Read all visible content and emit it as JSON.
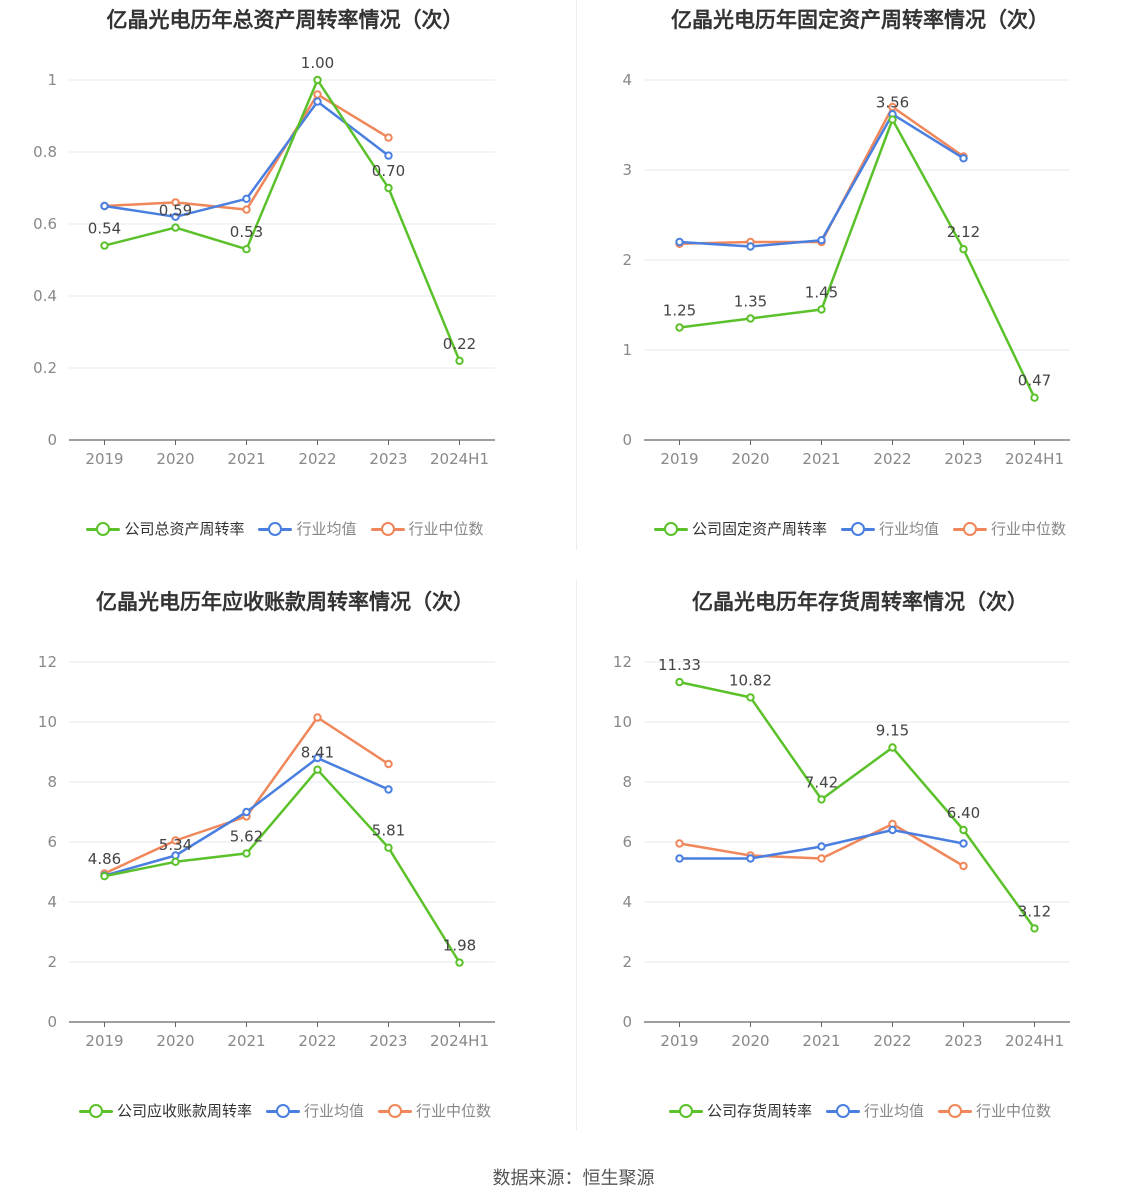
{
  "colors": {
    "company": "#5bc12a",
    "avg": "#4a7fe0",
    "median": "#f0875a",
    "grid": "#e6e8ef",
    "axis": "#666666",
    "tick": "#888888",
    "label": "#444444"
  },
  "source": "数据来源：恒生聚源",
  "chart_data": [
    {
      "type": "line",
      "title": "亿晶光电历年总资产周转率情况（次）",
      "categories": [
        "2019",
        "2020",
        "2021",
        "2022",
        "2023",
        "2024H1"
      ],
      "ylim": [
        0,
        1
      ],
      "yticks": [
        0,
        0.2,
        0.4,
        0.6,
        0.8,
        1
      ],
      "ytick_labels": [
        "0",
        "0.2",
        "0.4",
        "0.6",
        "0.8",
        "1"
      ],
      "grid": true,
      "legend": "bottom-center",
      "series": [
        {
          "name": "公司总资产周转率",
          "key": "company",
          "values": [
            0.54,
            0.59,
            0.53,
            1.0,
            0.7,
            0.22
          ],
          "labels": [
            "0.54",
            "0.59",
            "0.53",
            "1.00",
            "0.70",
            "0.22"
          ]
        },
        {
          "name": "行业均值",
          "key": "avg",
          "values": [
            0.65,
            0.62,
            0.67,
            0.94,
            0.79,
            null
          ]
        },
        {
          "name": "行业中位数",
          "key": "median",
          "values": [
            0.65,
            0.66,
            0.64,
            0.96,
            0.84,
            null
          ]
        }
      ]
    },
    {
      "type": "line",
      "title": "亿晶光电历年固定资产周转率情况（次）",
      "categories": [
        "2019",
        "2020",
        "2021",
        "2022",
        "2023",
        "2024H1"
      ],
      "ylim": [
        0,
        4
      ],
      "yticks": [
        0,
        1,
        2,
        3,
        4
      ],
      "ytick_labels": [
        "0",
        "1",
        "2",
        "3",
        "4"
      ],
      "grid": true,
      "legend": "bottom-center",
      "series": [
        {
          "name": "公司固定资产周转率",
          "key": "company",
          "values": [
            1.25,
            1.35,
            1.45,
            3.56,
            2.12,
            0.47
          ],
          "labels": [
            "1.25",
            "1.35",
            "1.45",
            "3.56",
            "2.12",
            "0.47"
          ]
        },
        {
          "name": "行业均值",
          "key": "avg",
          "values": [
            2.2,
            2.15,
            2.22,
            3.62,
            3.13,
            null
          ]
        },
        {
          "name": "行业中位数",
          "key": "median",
          "values": [
            2.18,
            2.2,
            2.2,
            3.7,
            3.15,
            null
          ]
        }
      ]
    },
    {
      "type": "line",
      "title": "亿晶光电历年应收账款周转率情况（次）",
      "categories": [
        "2019",
        "2020",
        "2021",
        "2022",
        "2023",
        "2024H1"
      ],
      "ylim": [
        0,
        12
      ],
      "yticks": [
        0,
        2,
        4,
        6,
        8,
        10,
        12
      ],
      "ytick_labels": [
        "0",
        "2",
        "4",
        "6",
        "8",
        "10",
        "12"
      ],
      "grid": true,
      "legend": "bottom-center",
      "series": [
        {
          "name": "公司应收账款周转率",
          "key": "company",
          "values": [
            4.86,
            5.34,
            5.62,
            8.41,
            5.81,
            1.98
          ],
          "labels": [
            "4.86",
            "5.34",
            "5.62",
            "8.41",
            "5.81",
            "1.98"
          ]
        },
        {
          "name": "行业均值",
          "key": "avg",
          "values": [
            4.88,
            5.55,
            7.0,
            8.8,
            7.75,
            null
          ]
        },
        {
          "name": "行业中位数",
          "key": "median",
          "values": [
            4.95,
            6.05,
            6.85,
            10.15,
            8.6,
            null
          ]
        }
      ]
    },
    {
      "type": "line",
      "title": "亿晶光电历年存货周转率情况（次）",
      "categories": [
        "2019",
        "2020",
        "2021",
        "2022",
        "2023",
        "2024H1"
      ],
      "ylim": [
        0,
        12
      ],
      "yticks": [
        0,
        2,
        4,
        6,
        8,
        10,
        12
      ],
      "ytick_labels": [
        "0",
        "2",
        "4",
        "6",
        "8",
        "10",
        "12"
      ],
      "grid": true,
      "legend": "bottom-center",
      "series": [
        {
          "name": "公司存货周转率",
          "key": "company",
          "values": [
            11.33,
            10.82,
            7.42,
            9.15,
            6.4,
            3.12
          ],
          "labels": [
            "11.33",
            "10.82",
            "7.42",
            "9.15",
            "6.40",
            "3.12"
          ]
        },
        {
          "name": "行业均值",
          "key": "avg",
          "values": [
            5.45,
            5.45,
            5.85,
            6.4,
            5.95,
            null
          ]
        },
        {
          "name": "行业中位数",
          "key": "median",
          "values": [
            5.95,
            5.55,
            5.45,
            6.6,
            5.2,
            null
          ]
        }
      ]
    }
  ]
}
